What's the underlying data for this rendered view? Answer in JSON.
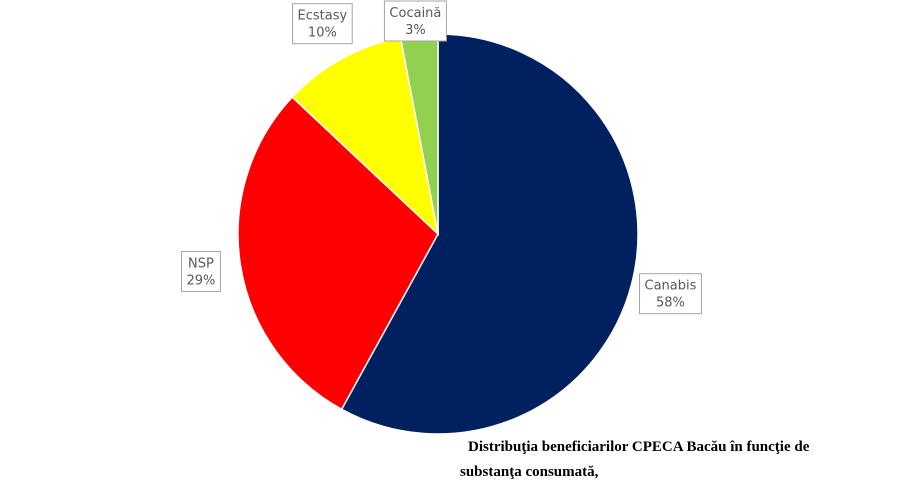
{
  "chart_data": {
    "type": "pie",
    "categories": [
      "Canabis",
      "NSP",
      "Ecstasy",
      "Cocaină"
    ],
    "values": [
      58,
      29,
      10,
      3
    ],
    "value_labels": [
      "58%",
      "29%",
      "10%",
      "3%"
    ],
    "colors": [
      "#002060",
      "#ff0000",
      "#ffff00",
      "#92d050"
    ],
    "caption": [
      "Distribuţia beneficiarilor CPECA Bacău în funcţie de",
      "substanţa consumată,"
    ]
  }
}
